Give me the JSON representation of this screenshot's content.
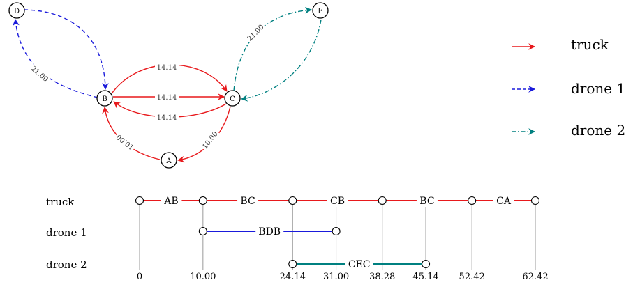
{
  "colors": {
    "truck": "#e8191c",
    "drone1": "#1a1adb",
    "drone2": "#008080",
    "node_stroke": "#000000"
  },
  "graph": {
    "nodes": [
      {
        "id": "A",
        "label": "A"
      },
      {
        "id": "B",
        "label": "B"
      },
      {
        "id": "C",
        "label": "C"
      },
      {
        "id": "D",
        "label": "D"
      },
      {
        "id": "E",
        "label": "E"
      }
    ],
    "edges": [
      {
        "name": "edge-b-c-top",
        "from": "B",
        "to": "C",
        "label": "14.14",
        "vehicle": "truck"
      },
      {
        "name": "edge-b-c-mid",
        "from": "B",
        "to": "C",
        "label": "14.14",
        "vehicle": "truck"
      },
      {
        "name": "edge-c-b",
        "from": "C",
        "to": "B",
        "label": "14.14",
        "vehicle": "truck"
      },
      {
        "name": "edge-c-a",
        "from": "C",
        "to": "A",
        "label": "10.00",
        "vehicle": "truck"
      },
      {
        "name": "edge-a-b",
        "from": "A",
        "to": "B",
        "label": "10.00",
        "vehicle": "truck"
      },
      {
        "name": "edge-b-d",
        "from": "B",
        "to": "D",
        "label": "21.00",
        "vehicle": "drone1"
      },
      {
        "name": "edge-d-b",
        "from": "D",
        "to": "B",
        "label": "",
        "vehicle": "drone1"
      },
      {
        "name": "edge-c-e",
        "from": "C",
        "to": "E",
        "label": "21.00",
        "vehicle": "drone2"
      },
      {
        "name": "edge-e-c",
        "from": "E",
        "to": "C",
        "label": "",
        "vehicle": "drone2"
      }
    ]
  },
  "legend": [
    {
      "key": "truck",
      "label": "truck",
      "style": "solid"
    },
    {
      "key": "drone1",
      "label": "drone 1",
      "style": "dashed"
    },
    {
      "key": "drone2",
      "label": "drone 2",
      "style": "dashdot"
    }
  ],
  "timeline": {
    "rows": [
      {
        "key": "truck",
        "label": "truck"
      },
      {
        "key": "drone1",
        "label": "drone 1"
      },
      {
        "key": "drone2",
        "label": "drone 2"
      }
    ],
    "ticks": [
      {
        "value": 0,
        "label": "0"
      },
      {
        "value": 10.0,
        "label": "10.00"
      },
      {
        "value": 24.14,
        "label": "24.14"
      },
      {
        "value": 31.0,
        "label": "31.00"
      },
      {
        "value": 38.28,
        "label": "38.28"
      },
      {
        "value": 45.14,
        "label": "45.14"
      },
      {
        "value": 52.42,
        "label": "52.42"
      },
      {
        "value": 62.42,
        "label": "62.42"
      }
    ],
    "segments": [
      {
        "row": "truck",
        "start": 0,
        "end": 10.0,
        "label": "AB"
      },
      {
        "row": "truck",
        "start": 10.0,
        "end": 24.14,
        "label": "BC"
      },
      {
        "row": "truck",
        "start": 24.14,
        "end": 38.28,
        "label": "CB"
      },
      {
        "row": "truck",
        "start": 38.28,
        "end": 52.42,
        "label": "BC"
      },
      {
        "row": "truck",
        "start": 52.42,
        "end": 62.42,
        "label": "CA"
      },
      {
        "row": "drone1",
        "start": 10.0,
        "end": 31.0,
        "label": "BDB"
      },
      {
        "row": "drone2",
        "start": 24.14,
        "end": 45.14,
        "label": "CEC"
      }
    ]
  }
}
